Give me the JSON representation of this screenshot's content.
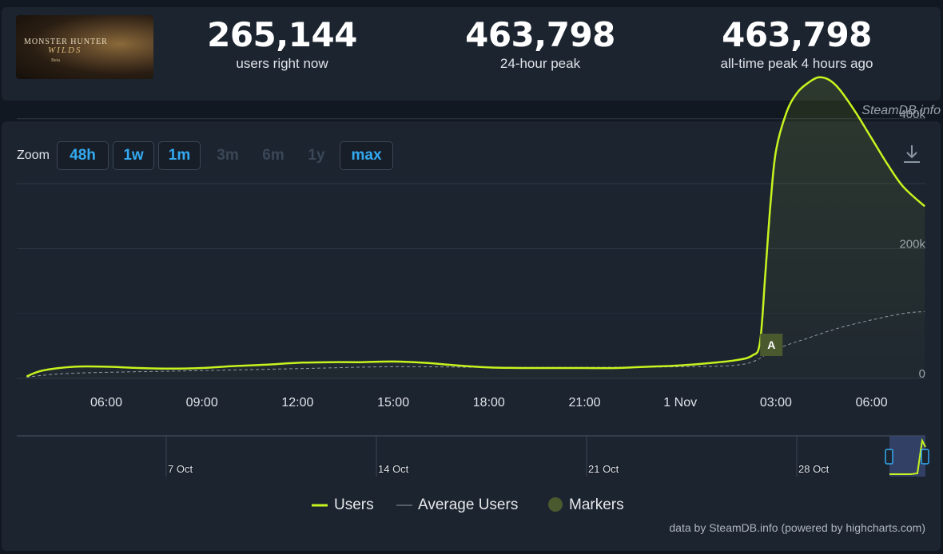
{
  "game": {
    "logo_line1": "MONSTER HUNTER",
    "logo_line2": "WILDS",
    "logo_line3": "Beta"
  },
  "stats": [
    {
      "value": "265,144",
      "label": "users right now"
    },
    {
      "value": "463,798",
      "label": "24-hour peak"
    },
    {
      "value": "463,798",
      "label": "all-time peak 4 hours ago"
    }
  ],
  "source_top": "SteamDB.info",
  "zoom": {
    "label": "Zoom",
    "buttons": [
      {
        "label": "48h",
        "enabled": true
      },
      {
        "label": "1w",
        "enabled": true
      },
      {
        "label": "1m",
        "enabled": true
      },
      {
        "label": "3m",
        "enabled": false
      },
      {
        "label": "6m",
        "enabled": false
      },
      {
        "label": "1y",
        "enabled": false
      },
      {
        "label": "max",
        "enabled": true
      }
    ]
  },
  "legend": {
    "users": "Users",
    "average": "Average Users",
    "markers": "Markers"
  },
  "source_bottom": "data by SteamDB.info (powered by highcharts.com)",
  "colors": {
    "users": "#c7f31e",
    "average": "#8f98a2",
    "marker": "#4a5a2e",
    "accent": "#33aaf2",
    "grid": "#2e3845"
  },
  "chart_data": {
    "type": "line",
    "x_start": "31 Oct 03:30",
    "x_end": "1 Nov 07:40",
    "x_ticks": [
      "06:00",
      "09:00",
      "12:00",
      "15:00",
      "18:00",
      "21:00",
      "1 Nov",
      "03:00",
      "06:00"
    ],
    "y_ticks": [
      "0",
      "200k",
      "400k"
    ],
    "ylim": [
      0,
      470000
    ],
    "series": [
      {
        "name": "Users",
        "points": [
          [
            "31 Oct 03:30",
            3000
          ],
          [
            "31 Oct 04:00",
            12000
          ],
          [
            "31 Oct 05:00",
            18000
          ],
          [
            "31 Oct 06:00",
            18000
          ],
          [
            "31 Oct 07:00",
            16000
          ],
          [
            "31 Oct 08:00",
            15000
          ],
          [
            "31 Oct 09:00",
            16000
          ],
          [
            "31 Oct 10:00",
            19000
          ],
          [
            "31 Oct 11:00",
            21000
          ],
          [
            "31 Oct 12:00",
            24000
          ],
          [
            "31 Oct 13:00",
            25000
          ],
          [
            "31 Oct 14:00",
            25000
          ],
          [
            "31 Oct 15:00",
            26000
          ],
          [
            "31 Oct 16:00",
            24000
          ],
          [
            "31 Oct 17:00",
            20000
          ],
          [
            "31 Oct 18:00",
            17000
          ],
          [
            "31 Oct 19:00",
            16000
          ],
          [
            "31 Oct 20:00",
            16000
          ],
          [
            "31 Oct 21:00",
            16000
          ],
          [
            "31 Oct 22:00",
            16000
          ],
          [
            "31 Oct 23:00",
            18000
          ],
          [
            "1 Nov 00:00",
            20000
          ],
          [
            "1 Nov 01:00",
            24000
          ],
          [
            "1 Nov 01:45",
            28000
          ],
          [
            "1 Nov 02:15",
            35000
          ],
          [
            "1 Nov 02:30",
            55000
          ],
          [
            "1 Nov 02:40",
            160000
          ],
          [
            "1 Nov 02:50",
            270000
          ],
          [
            "1 Nov 03:00",
            350000
          ],
          [
            "1 Nov 03:20",
            410000
          ],
          [
            "1 Nov 03:40",
            440000
          ],
          [
            "1 Nov 04:00",
            455000
          ],
          [
            "1 Nov 04:20",
            463798
          ],
          [
            "1 Nov 04:40",
            460000
          ],
          [
            "1 Nov 05:00",
            445000
          ],
          [
            "1 Nov 05:30",
            410000
          ],
          [
            "1 Nov 06:00",
            370000
          ],
          [
            "1 Nov 06:30",
            330000
          ],
          [
            "1 Nov 07:00",
            295000
          ],
          [
            "1 Nov 07:40",
            265144
          ]
        ]
      },
      {
        "name": "Average Users",
        "points": [
          [
            "31 Oct 03:30",
            2000
          ],
          [
            "31 Oct 05:00",
            8000
          ],
          [
            "31 Oct 09:00",
            12000
          ],
          [
            "31 Oct 12:00",
            15000
          ],
          [
            "31 Oct 15:00",
            18000
          ],
          [
            "31 Oct 18:00",
            17000
          ],
          [
            "31 Oct 21:00",
            17000
          ],
          [
            "1 Nov 00:00",
            18000
          ],
          [
            "1 Nov 02:00",
            22000
          ],
          [
            "1 Nov 03:00",
            45000
          ],
          [
            "1 Nov 04:00",
            62000
          ],
          [
            "1 Nov 05:00",
            78000
          ],
          [
            "1 Nov 06:00",
            90000
          ],
          [
            "1 Nov 07:00",
            100000
          ],
          [
            "1 Nov 07:40",
            103000
          ]
        ]
      }
    ],
    "markers": [
      {
        "label": "A",
        "x": "1 Nov 02:50"
      }
    ],
    "navigator": {
      "x_ticks": [
        "7 Oct",
        "14 Oct",
        "21 Oct",
        "28 Oct"
      ]
    }
  }
}
